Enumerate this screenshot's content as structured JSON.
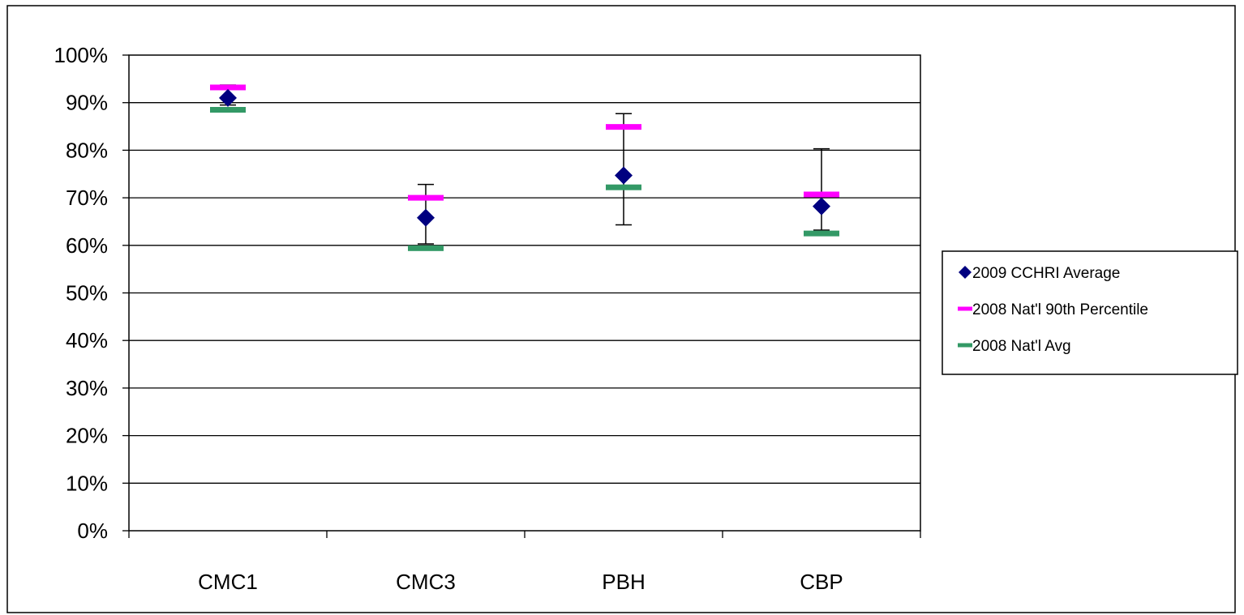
{
  "chart_data": {
    "type": "scatter",
    "title": "",
    "xlabel": "",
    "ylabel": "",
    "categories": [
      "CMC1",
      "CMC3",
      "PBH",
      "CBP"
    ],
    "ylim": [
      0,
      1
    ],
    "yticks": [
      "0%",
      "10%",
      "20%",
      "30%",
      "40%",
      "50%",
      "60%",
      "70%",
      "80%",
      "90%",
      "100%"
    ],
    "grid": true,
    "legend_position": "right",
    "series": [
      {
        "name": "2009 CCHRI Average",
        "marker": "diamond",
        "color": "#000080",
        "values": [
          0.91,
          0.658,
          0.747,
          0.682
        ],
        "error_low": [
          0.895,
          0.603,
          0.643,
          0.632
        ],
        "error_high": [
          0.937,
          0.728,
          0.877,
          0.803
        ]
      },
      {
        "name": "2008 Nat'l 90th Percentile",
        "marker": "dash",
        "color": "#FF00FF",
        "values": [
          0.932,
          0.7,
          0.849,
          0.707
        ]
      },
      {
        "name": "2008 Nat'l Avg",
        "marker": "dash",
        "color": "#339966",
        "values": [
          0.885,
          0.594,
          0.722,
          0.625
        ]
      }
    ]
  }
}
